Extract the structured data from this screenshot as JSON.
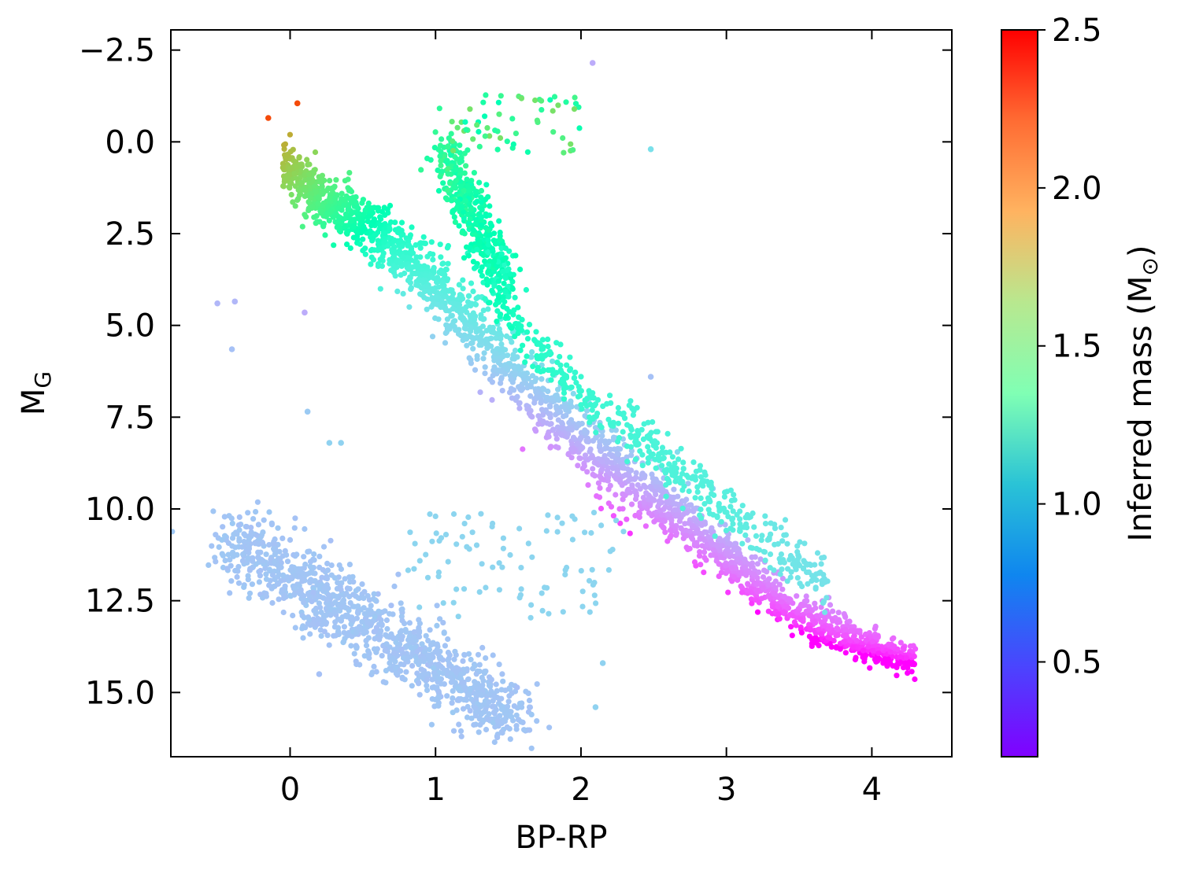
{
  "chart_data": {
    "type": "scatter",
    "title": "",
    "xlabel": "BP-RP",
    "ylabel": {
      "main": "M",
      "sub": "G"
    },
    "xlim": [
      -0.82,
      4.55
    ],
    "ylim": [
      16.75,
      -3.05
    ],
    "y_inverted": true,
    "x_ticks": [
      0,
      1,
      2,
      3,
      4
    ],
    "x_tick_labels": [
      "0",
      "1",
      "2",
      "3",
      "4"
    ],
    "y_ticks": [
      -2.5,
      0.0,
      2.5,
      5.0,
      7.5,
      10.0,
      12.5,
      15.0
    ],
    "y_tick_labels": [
      "−2.5",
      "0.0",
      "2.5",
      "5.0",
      "7.5",
      "10.0",
      "12.5",
      "15.0"
    ],
    "grid": false,
    "colorbar": {
      "label_main": "Inferred mass (M",
      "label_sub": "⊙",
      "label_end": ")",
      "range": [
        0.2,
        2.5
      ],
      "ticks": [
        0.5,
        1.0,
        1.5,
        2.0,
        2.5
      ],
      "tick_labels": [
        "0.5",
        "1.0",
        "1.5",
        "2.0",
        "2.5"
      ],
      "colormap": "rainbow"
    },
    "populations": [
      {
        "name": "main-sequence",
        "x_range": [
          -0.05,
          4.3
        ],
        "mass_range": [
          0.2,
          2.1
        ]
      },
      {
        "name": "red-giant-branch",
        "x_range": [
          0.9,
          2.0
        ],
        "mass_range": [
          1.0,
          1.9
        ]
      },
      {
        "name": "white-dwarf-sequence",
        "x_range": [
          -0.6,
          1.7
        ],
        "mass_range": [
          0.6,
          0.65
        ]
      }
    ],
    "notable_points": [
      {
        "x": 2.08,
        "y": -2.15,
        "mass": 0.5
      },
      {
        "x": 2.48,
        "y": 0.2,
        "mass": 0.8
      },
      {
        "x": 0.05,
        "y": -1.05,
        "mass": 2.45
      },
      {
        "x": -0.15,
        "y": -0.65,
        "mass": 2.45
      },
      {
        "x": -0.5,
        "y": 4.4,
        "mass": 0.55
      },
      {
        "x": -0.38,
        "y": 4.35,
        "mass": 0.55
      },
      {
        "x": -0.4,
        "y": 5.65,
        "mass": 0.6
      },
      {
        "x": 0.1,
        "y": 4.65,
        "mass": 0.5
      },
      {
        "x": 0.12,
        "y": 7.35,
        "mass": 0.65
      },
      {
        "x": 0.27,
        "y": 8.2,
        "mass": 0.7
      },
      {
        "x": 0.35,
        "y": 8.2,
        "mass": 0.7
      },
      {
        "x": 2.1,
        "y": 15.4,
        "mass": 0.7
      },
      {
        "x": 2.15,
        "y": 14.2,
        "mass": 0.7
      },
      {
        "x": 2.48,
        "y": 6.4,
        "mass": 0.6
      },
      {
        "x": 0.2,
        "y": 14.5,
        "mass": 0.6
      }
    ]
  }
}
